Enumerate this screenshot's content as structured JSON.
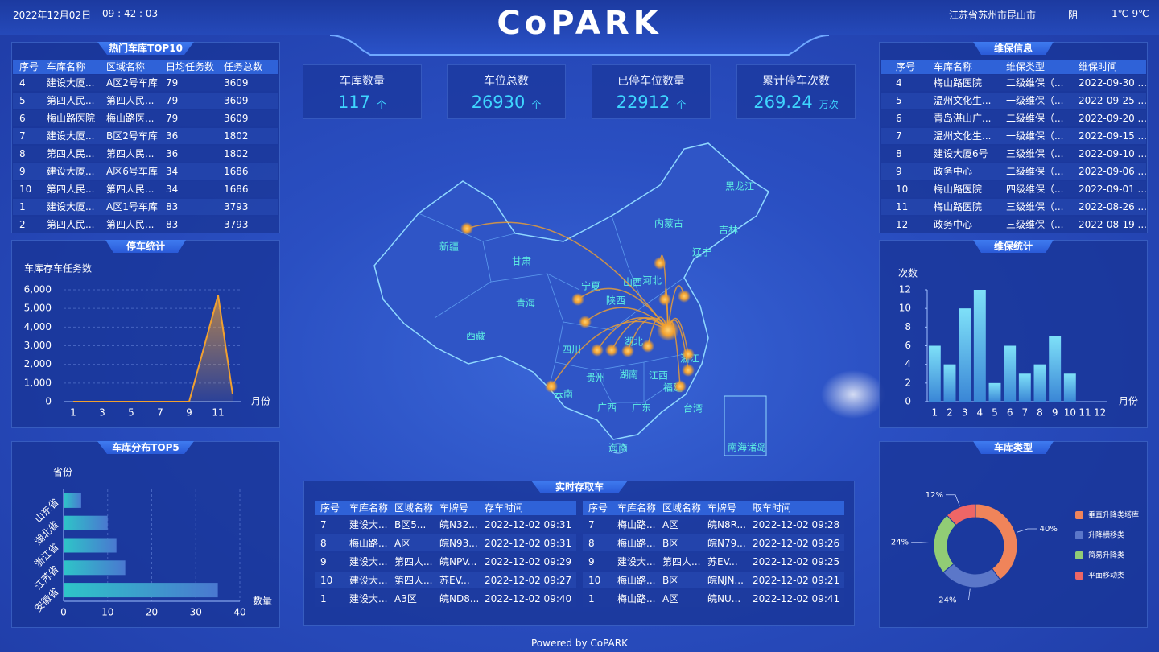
{
  "header": {
    "date": "2022年12月02日",
    "time": "09 : 42 : 03",
    "title": "CoPARK",
    "location": "江苏省苏州市昆山市",
    "weather": "阴",
    "temperature": "1℃-9℃"
  },
  "footer": "Powered by CoPARK",
  "cards": [
    {
      "label": "车库数量",
      "value": 117,
      "unit": "个"
    },
    {
      "label": "车位总数",
      "value": 26930,
      "unit": "个"
    },
    {
      "label": "已停车位数量",
      "value": 22912,
      "unit": "个"
    },
    {
      "label": "累计停车次数",
      "value": 269.24,
      "unit": "万次"
    }
  ],
  "hot_table": {
    "title": "热门车库TOP10",
    "columns": [
      "序号",
      "车库名称",
      "区域名称",
      "日均任务数",
      "任务总数"
    ],
    "rows": [
      [
        "4",
        "建设大厦...",
        "A区2号车库",
        "79",
        "3609"
      ],
      [
        "5",
        "第四人民...",
        "第四人民...",
        "79",
        "3609"
      ],
      [
        "6",
        "梅山路医院",
        "梅山路医...",
        "79",
        "3609"
      ],
      [
        "7",
        "建设大厦...",
        "B区2号车库",
        "36",
        "1802"
      ],
      [
        "8",
        "第四人民...",
        "第四人民...",
        "36",
        "1802"
      ],
      [
        "9",
        "建设大厦...",
        "A区6号车库",
        "34",
        "1686"
      ],
      [
        "10",
        "第四人民...",
        "第四人民...",
        "34",
        "1686"
      ],
      [
        "1",
        "建设大厦...",
        "A区1号车库",
        "83",
        "3793"
      ],
      [
        "2",
        "第四人民...",
        "第四人民...",
        "83",
        "3793"
      ]
    ]
  },
  "maint_table": {
    "title": "维保信息",
    "columns": [
      "序号",
      "车库名称",
      "维保类型",
      "维保时间"
    ],
    "rows": [
      [
        "4",
        "梅山路医院",
        "二级维保（...",
        "2022-09-30 ..."
      ],
      [
        "5",
        "温州文化生...",
        "一级维保（...",
        "2022-09-25 ..."
      ],
      [
        "6",
        "青岛湛山广...",
        "二级维保（...",
        "2022-09-20 ..."
      ],
      [
        "7",
        "温州文化生...",
        "一级维保（...",
        "2022-09-15 ..."
      ],
      [
        "8",
        "建设大厦6号",
        "三级维保（...",
        "2022-09-10 ..."
      ],
      [
        "9",
        "政务中心",
        "二级维保（...",
        "2022-09-06 ..."
      ],
      [
        "10",
        "梅山路医院",
        "四级维保（...",
        "2022-09-01 ..."
      ],
      [
        "11",
        "梅山路医院",
        "三级维保（...",
        "2022-08-26 ..."
      ],
      [
        "12",
        "政务中心",
        "三级维保（...",
        "2022-08-19 ..."
      ]
    ]
  },
  "realtime": {
    "title": "实时存取车",
    "store": {
      "columns": [
        "序号",
        "车库名称",
        "区域名称",
        "车牌号",
        "存车时间"
      ],
      "rows": [
        [
          "7",
          "建设大...",
          "B区5...",
          "皖N32...",
          "2022-12-02 09:31"
        ],
        [
          "8",
          "梅山路...",
          "A区",
          "皖N93...",
          "2022-12-02 09:31"
        ],
        [
          "9",
          "建设大...",
          "第四人...",
          "皖NPV...",
          "2022-12-02 09:29"
        ],
        [
          "10",
          "建设大...",
          "第四人...",
          "苏EV...",
          "2022-12-02 09:27"
        ],
        [
          "1",
          "建设大...",
          "A3区",
          "皖ND8...",
          "2022-12-02 09:40"
        ]
      ]
    },
    "retrieve": {
      "columns": [
        "序号",
        "车库名称",
        "区域名称",
        "车牌号",
        "取车时间"
      ],
      "rows": [
        [
          "7",
          "梅山路...",
          "A区",
          "皖N8R...",
          "2022-12-02 09:28"
        ],
        [
          "8",
          "梅山路...",
          "B区",
          "皖N79...",
          "2022-12-02 09:26"
        ],
        [
          "9",
          "建设大...",
          "第四人...",
          "苏EV...",
          "2022-12-02 09:25"
        ],
        [
          "10",
          "梅山路...",
          "B区",
          "皖NJN...",
          "2022-12-02 09:21"
        ],
        [
          "1",
          "梅山路...",
          "A区",
          "皖NU...",
          "2022-12-02 09:41"
        ]
      ]
    }
  },
  "map": {
    "labels": [
      "新疆",
      "甘肃",
      "青海",
      "西藏",
      "内蒙古",
      "黑龙江",
      "吉林",
      "辽宁",
      "宁夏",
      "山西",
      "河北",
      "陕西",
      "四川",
      "湖北",
      "贵州",
      "湖南",
      "江西",
      "浙江",
      "福建",
      "云南",
      "广西",
      "广东",
      "海南",
      "台湾",
      "南海诸岛"
    ]
  },
  "chart_data": [
    {
      "type": "line",
      "title": "停车统计",
      "y_label": "车库存车任务数",
      "x_label": "月份",
      "x": [
        1,
        2,
        3,
        4,
        5,
        6,
        7,
        8,
        9,
        10,
        11,
        12
      ],
      "values": [
        0,
        0,
        0,
        0,
        0,
        0,
        0,
        0,
        0,
        2850,
        5700,
        400
      ],
      "color": "#f0a030",
      "xlim": [
        1,
        12
      ],
      "xticks": [
        1,
        3,
        5,
        7,
        9,
        11
      ],
      "ylim": [
        0,
        6000
      ],
      "yticks": [
        0,
        {
          "value": 1000,
          "label": "1,000"
        },
        {
          "value": 2000,
          "label": "2,000"
        },
        {
          "value": 3000,
          "label": "3,000"
        },
        {
          "value": 4000,
          "label": "4,000"
        },
        {
          "value": 5000,
          "label": "5,000"
        },
        {
          "value": 6000,
          "label": "6,000"
        }
      ],
      "grid": true
    },
    {
      "type": "bar",
      "orientation": "horizontal",
      "title": "车库分布TOP5",
      "y_label": "省份",
      "x_label": "数量",
      "categories": [
        "山东省",
        "湖北省",
        "浙江省",
        "江苏省",
        "安徽省"
      ],
      "values": [
        4,
        10,
        12,
        14,
        35
      ],
      "color": "#2ec5c8",
      "xlim": [
        0,
        40
      ],
      "xticks": [
        0,
        10,
        20,
        30,
        40
      ],
      "grid": true
    },
    {
      "type": "bar",
      "orientation": "vertical",
      "title": "维保统计",
      "y_label": "次数",
      "x_label": "月份",
      "categories": [
        "1",
        "2",
        "3",
        "4",
        "5",
        "6",
        "7",
        "8",
        "9",
        "10",
        "11",
        "12"
      ],
      "values": [
        6,
        4,
        10,
        12,
        2,
        6,
        3,
        4,
        7,
        3,
        0,
        0
      ],
      "color": "#7ee0f8",
      "ylim": [
        0,
        12
      ],
      "yticks": [
        0,
        2,
        4,
        6,
        8,
        10,
        12
      ],
      "grid": false
    },
    {
      "type": "pie",
      "title": "车库类型",
      "donut": true,
      "categories": [
        "垂直升降类塔库",
        "升降横移类",
        "简易升降类",
        "平面移动类"
      ],
      "values": [
        40,
        24,
        24,
        12
      ],
      "value_labels": [
        "40%",
        "24%",
        "24%",
        "12%"
      ],
      "colors": [
        "#f0845a",
        "#5b77c9",
        "#91cc75",
        "#ee6666"
      ]
    }
  ]
}
